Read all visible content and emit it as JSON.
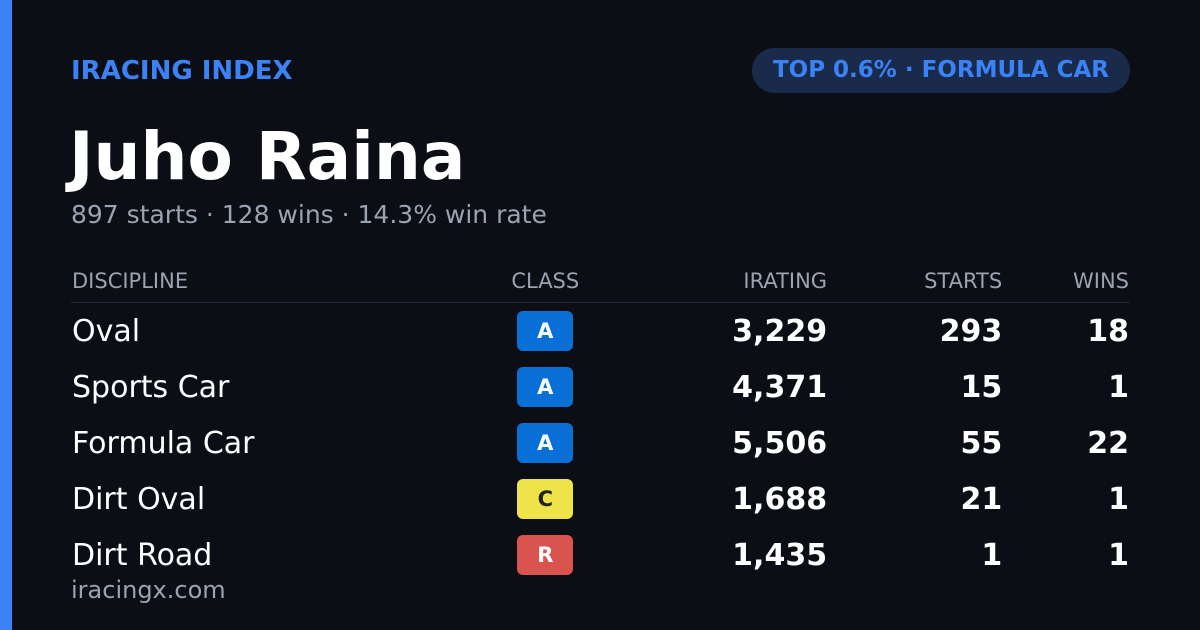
{
  "header": {
    "brand": "IRACING INDEX",
    "badge": "TOP 0.6% · FORMULA CAR",
    "name": "Juho Raina",
    "summary": "897 starts · 128 wins · 14.3% win rate"
  },
  "table": {
    "columns": [
      "DISCIPLINE",
      "CLASS",
      "IRATING",
      "STARTS",
      "WINS"
    ],
    "rows": [
      [
        "Oval",
        "A",
        "3,229",
        "293",
        "18"
      ],
      [
        "Sports Car",
        "A",
        "4,371",
        "15",
        "1"
      ],
      [
        "Formula Car",
        "A",
        "5,506",
        "55",
        "22"
      ],
      [
        "Dirt Oval",
        "C",
        "1,688",
        "21",
        "1"
      ],
      [
        "Dirt Road",
        "R",
        "1,435",
        "1",
        "1"
      ]
    ]
  },
  "footer": {
    "site": "iracingx.com"
  }
}
